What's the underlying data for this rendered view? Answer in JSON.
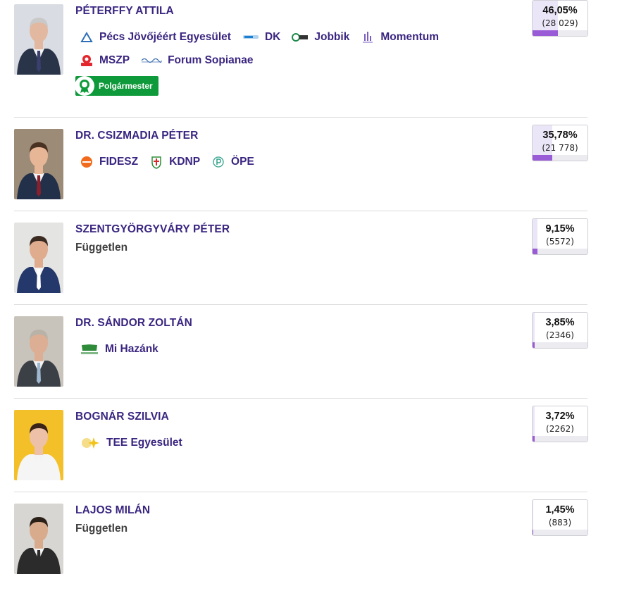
{
  "candidates": [
    {
      "name": "PÉTERFFY ATTILA",
      "independent": "",
      "badge": "Polgármester",
      "result": {
        "percent": "46,05%",
        "votes": "(28 029)",
        "share": 0.4605
      },
      "photo": {
        "bg": "#d9dde3",
        "suit": "#2a3448",
        "skin": "#e2b8a0",
        "hair": "#c9c9c9",
        "tie": "#3a3f6e"
      },
      "party_lines": [
        [
          {
            "label": "Pécs Jövőjéért Egyesület",
            "icon": "pecs-egyesulet-logo",
            "color": "#2e6fb7"
          },
          {
            "label": "DK",
            "icon": "dk-logo",
            "color": "#1c7fd1"
          },
          {
            "label": "Jobbik",
            "icon": "jobbik-logo",
            "color": "#1d8a4b"
          },
          {
            "label": "Momentum",
            "icon": "momentum-logo",
            "color": "#7a5fc1"
          }
        ],
        [
          {
            "label": "MSZP",
            "icon": "mszp-logo",
            "color": "#e3262d"
          },
          {
            "label": "Forum Sopianae",
            "icon": "forum-sopianae-logo",
            "color": "#3f6fb1"
          }
        ]
      ]
    },
    {
      "name": "DR. CSIZMADIA PÉTER",
      "independent": "",
      "badge": "",
      "result": {
        "percent": "35,78%",
        "votes": "(21 778)",
        "share": 0.3578
      },
      "photo": {
        "bg": "#9c8b76",
        "suit": "#23304a",
        "skin": "#e6b696",
        "hair": "#4a3222",
        "tie": "#8a1f2e"
      },
      "party_lines": [
        [
          {
            "label": "FIDESZ",
            "icon": "fidesz-logo",
            "color": "#f26b1d"
          },
          {
            "label": "KDNP",
            "icon": "kdnp-logo",
            "color": "#2f8f3a"
          },
          {
            "label": "ÖPE",
            "icon": "ope-logo",
            "color": "#2fa38a"
          }
        ]
      ]
    },
    {
      "name": "SZENTGYÖRGYVÁRY PÉTER",
      "independent": "Független",
      "badge": "",
      "result": {
        "percent": "9,15%",
        "votes": "(5572)",
        "share": 0.0915
      },
      "photo": {
        "bg": "#e4e4e2",
        "suit": "#24386b",
        "skin": "#e0ac8e",
        "hair": "#3b2a20",
        "tie": "#ffffff"
      },
      "party_lines": []
    },
    {
      "name": "DR. SÁNDOR ZOLTÁN",
      "independent": "",
      "badge": "",
      "result": {
        "percent": "3,85%",
        "votes": "(2346)",
        "share": 0.0385
      },
      "photo": {
        "bg": "#c9c4bb",
        "suit": "#3b3f46",
        "skin": "#dcae93",
        "hair": "#b9b2a8",
        "tie": "#9fb7cf"
      },
      "party_lines": [
        [
          {
            "label": "Mi Hazánk",
            "icon": "mi-hazank-logo",
            "color": "#2e8b3a"
          }
        ]
      ]
    },
    {
      "name": "BOGNÁR SZILVIA",
      "independent": "",
      "badge": "",
      "result": {
        "percent": "3,72%",
        "votes": "(2262)",
        "share": 0.0372
      },
      "photo": {
        "bg": "#f4c02a",
        "suit": "#f5f5f5",
        "skin": "#ecc1a8",
        "hair": "#3a2418",
        "tie": "#f5f5f5"
      },
      "party_lines": [
        [
          {
            "label": "TEE Egyesület",
            "icon": "tee-logo",
            "color": "#f0c419"
          }
        ]
      ]
    },
    {
      "name": "LAJOS MILÁN",
      "independent": "Független",
      "badge": "",
      "result": {
        "percent": "1,45%",
        "votes": "(883)",
        "share": 0.0145
      },
      "photo": {
        "bg": "#d8d6d2",
        "suit": "#2b2b2b",
        "skin": "#d9ab8d",
        "hair": "#2a2018",
        "tie": "#2b2b2b"
      },
      "party_lines": []
    }
  ]
}
